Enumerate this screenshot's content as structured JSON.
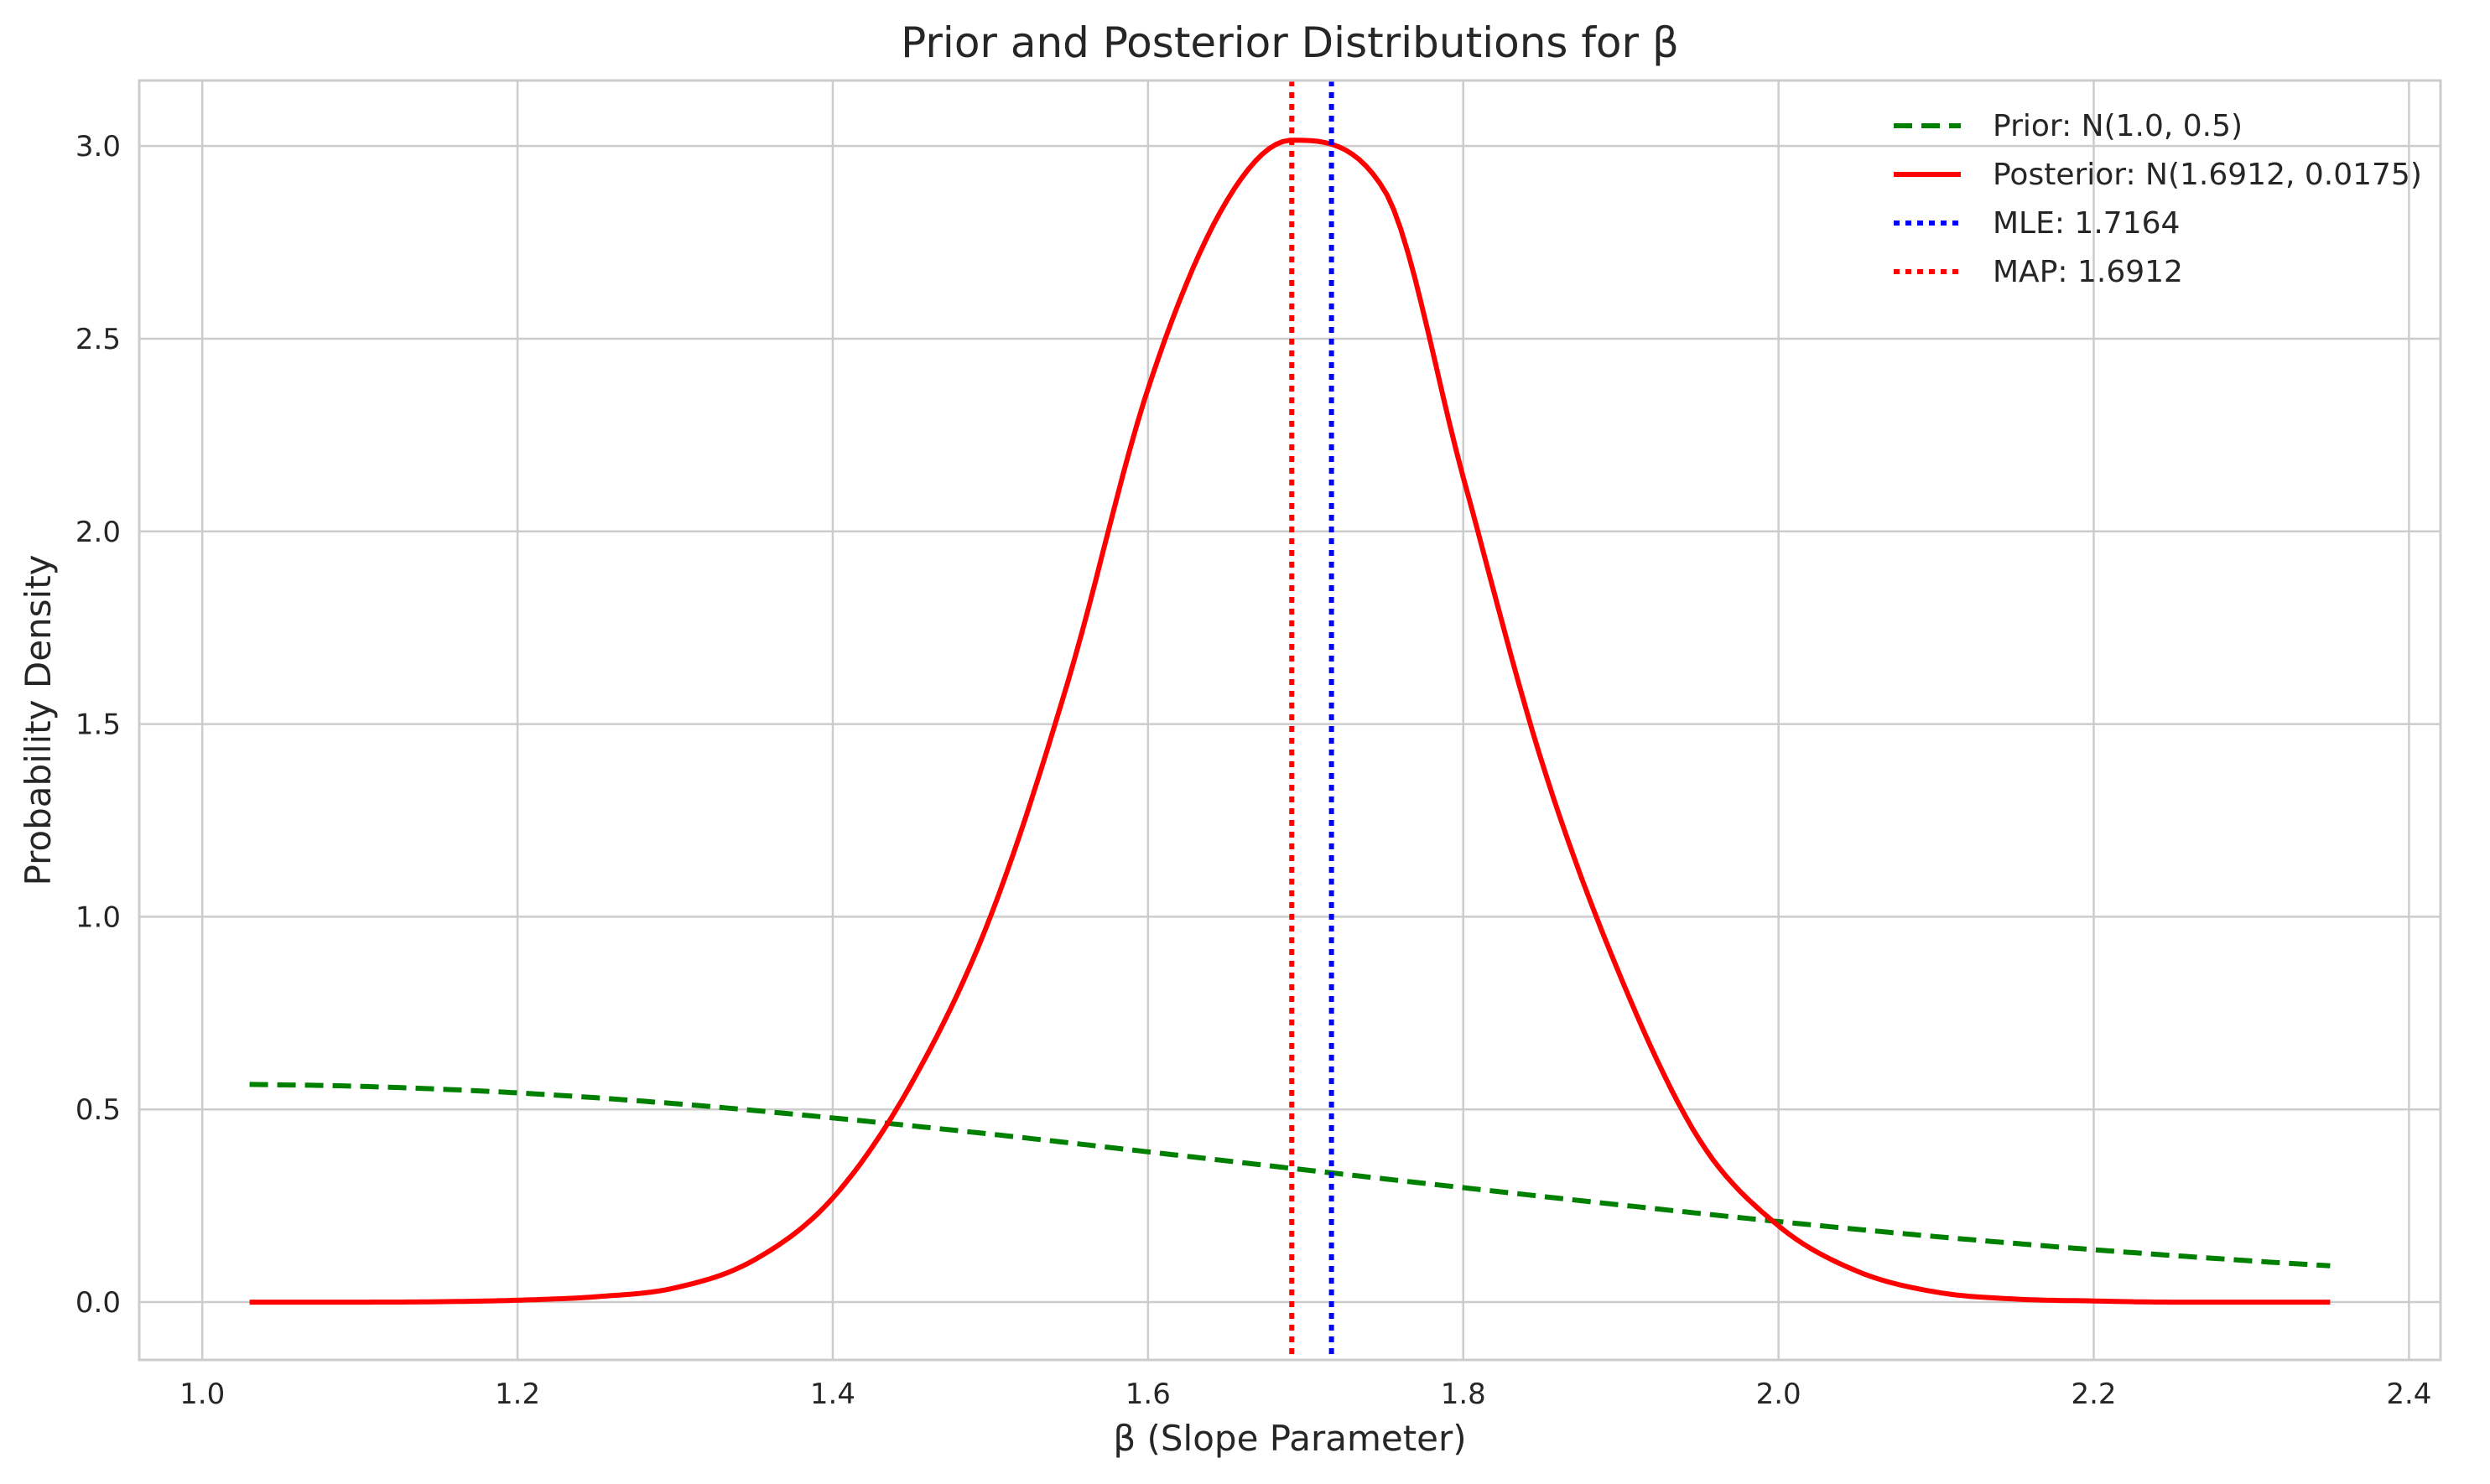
{
  "chart_data": {
    "type": "line",
    "title": "Prior and Posterior Distributions for β",
    "xlabel": "β (Slope Parameter)",
    "ylabel": "Probability Density",
    "xlim": [
      0.96,
      2.42
    ],
    "ylim": [
      -0.15,
      3.17
    ],
    "grid": true,
    "legend_position": "top-right",
    "x_ticks": [
      1.0,
      1.2,
      1.4,
      1.6,
      1.8,
      2.0,
      2.2,
      2.4
    ],
    "x_tick_labels": [
      "1.0",
      "1.2",
      "1.4",
      "1.6",
      "1.8",
      "2.0",
      "2.2",
      "2.4"
    ],
    "y_ticks": [
      0.0,
      0.5,
      1.0,
      1.5,
      2.0,
      2.5,
      3.0
    ],
    "y_tick_labels": [
      "0.0",
      "0.5",
      "1.0",
      "1.5",
      "2.0",
      "2.5",
      "3.0"
    ],
    "series": [
      {
        "name": "Prior: N(1.0, 0.5)",
        "kind": "curve",
        "style": "dashed",
        "color": "#008000",
        "x": [
          1.03,
          1.1,
          1.2,
          1.3,
          1.4,
          1.5,
          1.6,
          1.7,
          1.8,
          1.9,
          2.0,
          2.1,
          2.2,
          2.3,
          2.35
        ],
        "y": [
          0.565,
          0.56,
          0.543,
          0.515,
          0.478,
          0.436,
          0.39,
          0.343,
          0.297,
          0.252,
          0.209,
          0.17,
          0.136,
          0.107,
          0.094
        ]
      },
      {
        "name": "Posterior: N(1.6912, 0.0175)",
        "kind": "curve",
        "style": "solid",
        "color": "#ff0000",
        "x": [
          1.03,
          1.1,
          1.15,
          1.2,
          1.25,
          1.3,
          1.35,
          1.4,
          1.45,
          1.5,
          1.55,
          1.6,
          1.65,
          1.6912,
          1.75,
          1.8,
          1.85,
          1.9,
          1.95,
          2.0,
          2.05,
          2.1,
          2.15,
          2.2,
          2.25,
          2.3,
          2.35
        ],
        "y": [
          0.0,
          0.0,
          0.001,
          0.005,
          0.014,
          0.037,
          0.109,
          0.27,
          0.568,
          1.0,
          1.621,
          2.37,
          2.858,
          3.015,
          2.885,
          2.14,
          1.4,
          0.842,
          0.42,
          0.198,
          0.08,
          0.026,
          0.008,
          0.003,
          0.0,
          0.0,
          0.0
        ]
      },
      {
        "name": "MLE: 1.7164",
        "kind": "vline",
        "style": "dotted",
        "color": "#0000ff",
        "x": 1.7164
      },
      {
        "name": "MAP: 1.6912",
        "kind": "vline",
        "style": "dotted",
        "color": "#ff0000",
        "x": 1.6912
      }
    ]
  }
}
